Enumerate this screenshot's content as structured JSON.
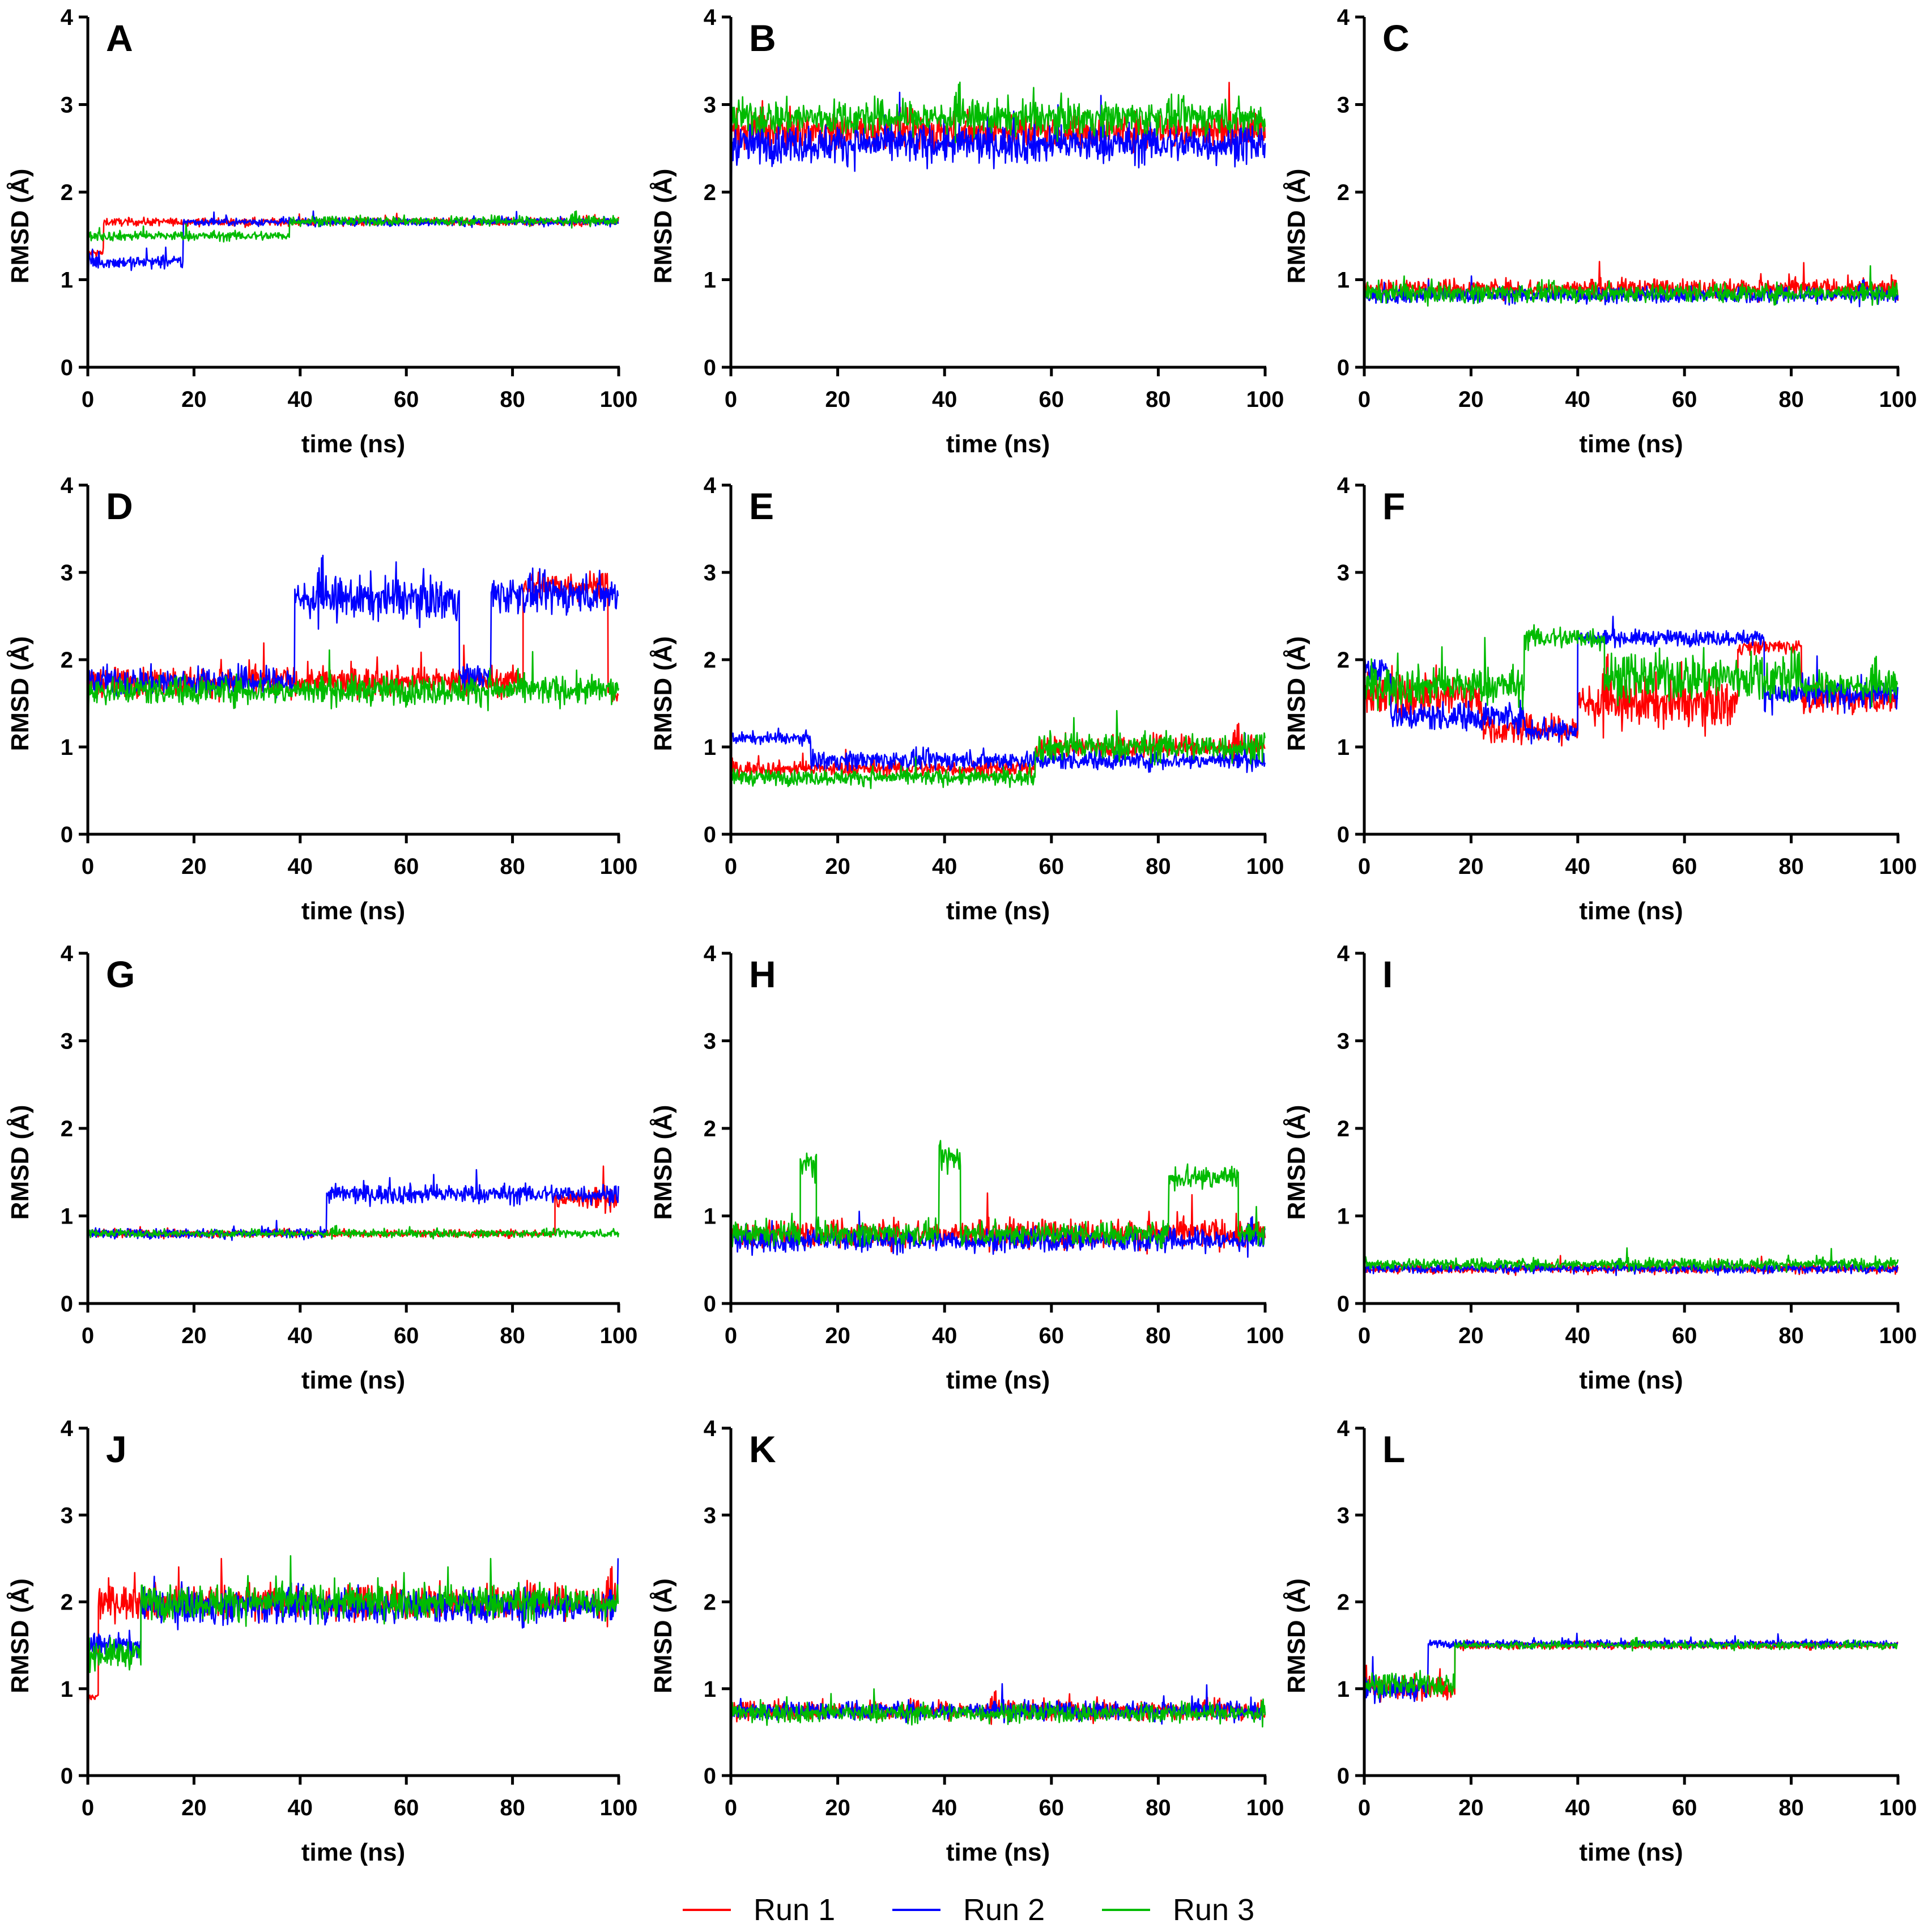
{
  "figure": {
    "legend": [
      {
        "name": "Run 1",
        "color": "#ff0000"
      },
      {
        "name": "Run 2",
        "color": "#0000ff"
      },
      {
        "name": "Run 3",
        "color": "#00bb00"
      }
    ]
  },
  "chart_data": [
    {
      "panel": "A",
      "type": "line",
      "xlabel": "time (ns)",
      "ylabel": "RMSD (Å)",
      "xlim": [
        0,
        100
      ],
      "ylim": [
        0,
        4
      ],
      "xticks": [
        0,
        20,
        40,
        60,
        80,
        100
      ],
      "yticks": [
        0,
        1,
        2,
        3,
        4
      ],
      "series": [
        {
          "name": "Run 1",
          "segments": [
            [
              0,
              3,
              1.3,
              0.05
            ],
            [
              3,
              100,
              1.66,
              0.04
            ]
          ]
        },
        {
          "name": "Run 2",
          "segments": [
            [
              0,
              18,
              1.2,
              0.07
            ],
            [
              18,
              100,
              1.66,
              0.04
            ]
          ]
        },
        {
          "name": "Run 3",
          "segments": [
            [
              0,
              38,
              1.5,
              0.05
            ],
            [
              38,
              100,
              1.67,
              0.05
            ]
          ]
        }
      ]
    },
    {
      "panel": "B",
      "type": "line",
      "xlabel": "time (ns)",
      "ylabel": "RMSD (Å)",
      "xlim": [
        0,
        100
      ],
      "ylim": [
        0,
        4
      ],
      "xticks": [
        0,
        20,
        40,
        60,
        80,
        100
      ],
      "yticks": [
        0,
        1,
        2,
        3,
        4
      ],
      "series": [
        {
          "name": "Run 1",
          "segments": [
            [
              0,
              100,
              2.7,
              0.18
            ]
          ]
        },
        {
          "name": "Run 2",
          "segments": [
            [
              0,
              100,
              2.55,
              0.2
            ]
          ]
        },
        {
          "name": "Run 3",
          "segments": [
            [
              0,
              100,
              2.85,
              0.18
            ]
          ]
        }
      ]
    },
    {
      "panel": "C",
      "type": "line",
      "xlabel": "time (ns)",
      "ylabel": "RMSD (Å)",
      "xlim": [
        0,
        100
      ],
      "ylim": [
        0,
        4
      ],
      "xticks": [
        0,
        20,
        40,
        60,
        80,
        100
      ],
      "yticks": [
        0,
        1,
        2,
        3,
        4
      ],
      "series": [
        {
          "name": "Run 1",
          "segments": [
            [
              0,
              100,
              0.9,
              0.1
            ]
          ]
        },
        {
          "name": "Run 2",
          "segments": [
            [
              0,
              100,
              0.82,
              0.08
            ]
          ]
        },
        {
          "name": "Run 3",
          "segments": [
            [
              0,
              100,
              0.85,
              0.1
            ]
          ]
        }
      ]
    },
    {
      "panel": "D",
      "type": "line",
      "xlabel": "time (ns)",
      "ylabel": "RMSD (Å)",
      "xlim": [
        0,
        100
      ],
      "ylim": [
        0,
        4
      ],
      "xticks": [
        0,
        20,
        40,
        60,
        80,
        100
      ],
      "yticks": [
        0,
        1,
        2,
        3,
        4
      ],
      "series": [
        {
          "name": "Run 1",
          "segments": [
            [
              0,
              82,
              1.75,
              0.15
            ],
            [
              82,
              98,
              2.85,
              0.15
            ],
            [
              98,
              100,
              1.6,
              0.1
            ]
          ]
        },
        {
          "name": "Run 2",
          "segments": [
            [
              0,
              39,
              1.75,
              0.15
            ],
            [
              39,
              70,
              2.7,
              0.22
            ],
            [
              70,
              76,
              1.8,
              0.15
            ],
            [
              76,
              100,
              2.75,
              0.2
            ]
          ]
        },
        {
          "name": "Run 3",
          "segments": [
            [
              0,
              100,
              1.65,
              0.15
            ]
          ]
        }
      ]
    },
    {
      "panel": "E",
      "type": "line",
      "xlabel": "time (ns)",
      "ylabel": "RMSD (Å)",
      "xlim": [
        0,
        100
      ],
      "ylim": [
        0,
        4
      ],
      "xticks": [
        0,
        20,
        40,
        60,
        80,
        100
      ],
      "yticks": [
        0,
        1,
        2,
        3,
        4
      ],
      "series": [
        {
          "name": "Run 1",
          "segments": [
            [
              0,
              57,
              0.75,
              0.08
            ],
            [
              57,
              100,
              1.0,
              0.12
            ]
          ]
        },
        {
          "name": "Run 2",
          "segments": [
            [
              0,
              15,
              1.1,
              0.06
            ],
            [
              15,
              100,
              0.85,
              0.1
            ]
          ]
        },
        {
          "name": "Run 3",
          "segments": [
            [
              0,
              57,
              0.65,
              0.08
            ],
            [
              57,
              100,
              1.0,
              0.15
            ]
          ]
        }
      ]
    },
    {
      "panel": "F",
      "type": "line",
      "xlabel": "time (ns)",
      "ylabel": "RMSD (Å)",
      "xlim": [
        0,
        100
      ],
      "ylim": [
        0,
        4
      ],
      "xticks": [
        0,
        20,
        40,
        60,
        80,
        100
      ],
      "yticks": [
        0,
        1,
        2,
        3,
        4
      ],
      "series": [
        {
          "name": "Run 1",
          "segments": [
            [
              0,
              22,
              1.6,
              0.25
            ],
            [
              22,
              40,
              1.2,
              0.15
            ],
            [
              40,
              70,
              1.5,
              0.25
            ],
            [
              70,
              82,
              2.15,
              0.08
            ],
            [
              82,
              100,
              1.55,
              0.15
            ]
          ]
        },
        {
          "name": "Run 2",
          "segments": [
            [
              0,
              5,
              1.9,
              0.15
            ],
            [
              5,
              30,
              1.35,
              0.15
            ],
            [
              30,
              40,
              1.2,
              0.15
            ],
            [
              40,
              75,
              2.25,
              0.08
            ],
            [
              75,
              100,
              1.6,
              0.15
            ]
          ]
        },
        {
          "name": "Run 3",
          "segments": [
            [
              0,
              30,
              1.7,
              0.2
            ],
            [
              30,
              45,
              2.25,
              0.12
            ],
            [
              45,
              82,
              1.8,
              0.25
            ],
            [
              82,
              100,
              1.7,
              0.15
            ]
          ]
        }
      ]
    },
    {
      "panel": "G",
      "type": "line",
      "xlabel": "time (ns)",
      "ylabel": "RMSD (Å)",
      "xlim": [
        0,
        100
      ],
      "ylim": [
        0,
        4
      ],
      "xticks": [
        0,
        20,
        40,
        60,
        80,
        100
      ],
      "yticks": [
        0,
        1,
        2,
        3,
        4
      ],
      "series": [
        {
          "name": "Run 1",
          "segments": [
            [
              0,
              88,
              0.8,
              0.04
            ],
            [
              88,
              100,
              1.2,
              0.12
            ]
          ]
        },
        {
          "name": "Run 2",
          "segments": [
            [
              0,
              45,
              0.8,
              0.05
            ],
            [
              45,
              100,
              1.25,
              0.1
            ]
          ]
        },
        {
          "name": "Run 3",
          "segments": [
            [
              0,
              100,
              0.8,
              0.04
            ]
          ]
        }
      ]
    },
    {
      "panel": "H",
      "type": "line",
      "xlabel": "time (ns)",
      "ylabel": "RMSD (Å)",
      "xlim": [
        0,
        100
      ],
      "ylim": [
        0,
        4
      ],
      "xticks": [
        0,
        20,
        40,
        60,
        80,
        100
      ],
      "yticks": [
        0,
        1,
        2,
        3,
        4
      ],
      "series": [
        {
          "name": "Run 1",
          "segments": [
            [
              0,
              100,
              0.8,
              0.15
            ]
          ]
        },
        {
          "name": "Run 2",
          "segments": [
            [
              0,
              100,
              0.72,
              0.12
            ]
          ]
        },
        {
          "name": "Run 3",
          "segments": [
            [
              0,
              13,
              0.8,
              0.12
            ],
            [
              13,
              16,
              1.6,
              0.15
            ],
            [
              16,
              39,
              0.8,
              0.12
            ],
            [
              39,
              43,
              1.65,
              0.15
            ],
            [
              43,
              82,
              0.8,
              0.12
            ],
            [
              82,
              95,
              1.45,
              0.15
            ],
            [
              95,
              100,
              0.8,
              0.1
            ]
          ]
        }
      ]
    },
    {
      "panel": "I",
      "type": "line",
      "xlabel": "time (ns)",
      "ylabel": "RMSD (Å)",
      "xlim": [
        0,
        100
      ],
      "ylim": [
        0,
        4
      ],
      "xticks": [
        0,
        20,
        40,
        60,
        80,
        100
      ],
      "yticks": [
        0,
        1,
        2,
        3,
        4
      ],
      "series": [
        {
          "name": "Run 1",
          "segments": [
            [
              0,
              100,
              0.4,
              0.05
            ]
          ]
        },
        {
          "name": "Run 2",
          "segments": [
            [
              0,
              100,
              0.4,
              0.05
            ]
          ]
        },
        {
          "name": "Run 3",
          "segments": [
            [
              0,
              100,
              0.45,
              0.06
            ]
          ]
        }
      ]
    },
    {
      "panel": "J",
      "type": "line",
      "xlabel": "time (ns)",
      "ylabel": "RMSD (Å)",
      "xlim": [
        0,
        100
      ],
      "ylim": [
        0,
        4
      ],
      "xticks": [
        0,
        20,
        40,
        60,
        80,
        100
      ],
      "yticks": [
        0,
        1,
        2,
        3,
        4
      ],
      "series": [
        {
          "name": "Run 1",
          "segments": [
            [
              0,
              2,
              0.9,
              0.05
            ],
            [
              2,
              100,
              2.0,
              0.18
            ]
          ]
        },
        {
          "name": "Run 2",
          "segments": [
            [
              0,
              10,
              1.5,
              0.12
            ],
            [
              10,
              100,
              1.95,
              0.18
            ]
          ]
        },
        {
          "name": "Run 3",
          "segments": [
            [
              0,
              10,
              1.4,
              0.15
            ],
            [
              10,
              100,
              2.0,
              0.18
            ]
          ]
        }
      ]
    },
    {
      "panel": "K",
      "type": "line",
      "xlabel": "time (ns)",
      "ylabel": "RMSD (Å)",
      "xlim": [
        0,
        100
      ],
      "ylim": [
        0,
        4
      ],
      "xticks": [
        0,
        20,
        40,
        60,
        80,
        100
      ],
      "yticks": [
        0,
        1,
        2,
        3,
        4
      ],
      "series": [
        {
          "name": "Run 1",
          "segments": [
            [
              0,
              100,
              0.75,
              0.1
            ]
          ]
        },
        {
          "name": "Run 2",
          "segments": [
            [
              0,
              100,
              0.75,
              0.1
            ]
          ]
        },
        {
          "name": "Run 3",
          "segments": [
            [
              0,
              100,
              0.72,
              0.1
            ]
          ]
        }
      ]
    },
    {
      "panel": "L",
      "type": "line",
      "xlabel": "time (ns)",
      "ylabel": "RMSD (Å)",
      "xlim": [
        0,
        100
      ],
      "ylim": [
        0,
        4
      ],
      "xticks": [
        0,
        20,
        40,
        60,
        80,
        100
      ],
      "yticks": [
        0,
        1,
        2,
        3,
        4
      ],
      "series": [
        {
          "name": "Run 1",
          "segments": [
            [
              0,
              17,
              1.0,
              0.12
            ],
            [
              17,
              100,
              1.5,
              0.04
            ]
          ]
        },
        {
          "name": "Run 2",
          "segments": [
            [
              0,
              12,
              1.0,
              0.12
            ],
            [
              12,
              100,
              1.52,
              0.04
            ]
          ]
        },
        {
          "name": "Run 3",
          "segments": [
            [
              0,
              17,
              1.05,
              0.12
            ],
            [
              17,
              100,
              1.5,
              0.04
            ]
          ]
        }
      ]
    }
  ]
}
